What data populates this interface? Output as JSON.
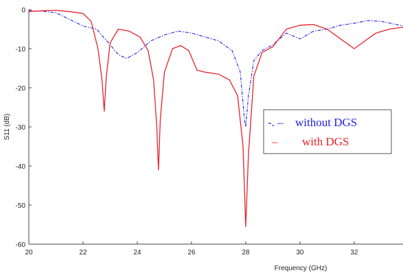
{
  "chart_data": {
    "type": "line",
    "title": "",
    "xlabel": "Frequency (GHz)",
    "ylabel": "S11 (dB)",
    "xlim": [
      20,
      33.8
    ],
    "ylim": [
      -60,
      0
    ],
    "x_ticks": [
      20,
      22,
      24,
      26,
      28,
      30,
      32
    ],
    "y_ticks": [
      0,
      -10,
      -20,
      -30,
      -40,
      -50,
      -60
    ],
    "grid": false,
    "legend_position": "right",
    "series": [
      {
        "name": "without DGS",
        "legend_marker": "-. –",
        "color": "#1f1fe6",
        "line_style": "dashdot",
        "points": [
          [
            20,
            -0.3
          ],
          [
            20.5,
            -0.4
          ],
          [
            21,
            -0.8
          ],
          [
            21.5,
            -2.5
          ],
          [
            22,
            -4.2
          ],
          [
            22.5,
            -5.0
          ],
          [
            23,
            -9.0
          ],
          [
            23.3,
            -11.5
          ],
          [
            23.6,
            -12.5
          ],
          [
            24,
            -11.0
          ],
          [
            24.5,
            -8.0
          ],
          [
            25,
            -6.5
          ],
          [
            25.5,
            -5.5
          ],
          [
            26,
            -6.0
          ],
          [
            26.5,
            -7.0
          ],
          [
            27,
            -8.0
          ],
          [
            27.5,
            -10.5
          ],
          [
            27.8,
            -16.0
          ],
          [
            27.95,
            -28.0
          ],
          [
            28.0,
            -30.0
          ],
          [
            28.1,
            -22.0
          ],
          [
            28.3,
            -13.0
          ],
          [
            28.6,
            -10.5
          ],
          [
            29,
            -9.0
          ],
          [
            29.5,
            -6.0
          ],
          [
            30,
            -7.5
          ],
          [
            30.5,
            -5.5
          ],
          [
            31,
            -5.0
          ],
          [
            31.5,
            -4.0
          ],
          [
            32,
            -3.5
          ],
          [
            32.5,
            -2.8
          ],
          [
            33,
            -3.0
          ],
          [
            33.8,
            -4.2
          ]
        ]
      },
      {
        "name": "with DGS",
        "legend_marker": "–",
        "color": "#e8202a",
        "line_style": "solid",
        "points": [
          [
            20,
            -0.5
          ],
          [
            20.5,
            -0.3
          ],
          [
            21,
            -0.2
          ],
          [
            21.5,
            -0.5
          ],
          [
            22,
            -1.0
          ],
          [
            22.3,
            -3.0
          ],
          [
            22.55,
            -10.0
          ],
          [
            22.7,
            -18.0
          ],
          [
            22.78,
            -26.0
          ],
          [
            22.86,
            -17.0
          ],
          [
            23.0,
            -8.5
          ],
          [
            23.3,
            -5.0
          ],
          [
            23.7,
            -5.5
          ],
          [
            24.1,
            -7.0
          ],
          [
            24.4,
            -10.5
          ],
          [
            24.6,
            -18.0
          ],
          [
            24.72,
            -30.0
          ],
          [
            24.78,
            -41.0
          ],
          [
            24.85,
            -28.0
          ],
          [
            25.0,
            -16.0
          ],
          [
            25.3,
            -10.0
          ],
          [
            25.6,
            -9.2
          ],
          [
            25.9,
            -10.5
          ],
          [
            26.2,
            -15.5
          ],
          [
            26.5,
            -16.0
          ],
          [
            27,
            -16.5
          ],
          [
            27.4,
            -18.0
          ],
          [
            27.7,
            -22.0
          ],
          [
            27.9,
            -35.0
          ],
          [
            28.0,
            -55.5
          ],
          [
            28.1,
            -37.0
          ],
          [
            28.3,
            -17.0
          ],
          [
            28.6,
            -11.0
          ],
          [
            29.0,
            -9.5
          ],
          [
            29.5,
            -5.0
          ],
          [
            30,
            -4.0
          ],
          [
            30.5,
            -3.8
          ],
          [
            31,
            -5.0
          ],
          [
            31.5,
            -7.5
          ],
          [
            32,
            -10.0
          ],
          [
            32.4,
            -8.0
          ],
          [
            32.8,
            -6.0
          ],
          [
            33.3,
            -5.0
          ],
          [
            33.8,
            -4.5
          ]
        ]
      }
    ]
  }
}
